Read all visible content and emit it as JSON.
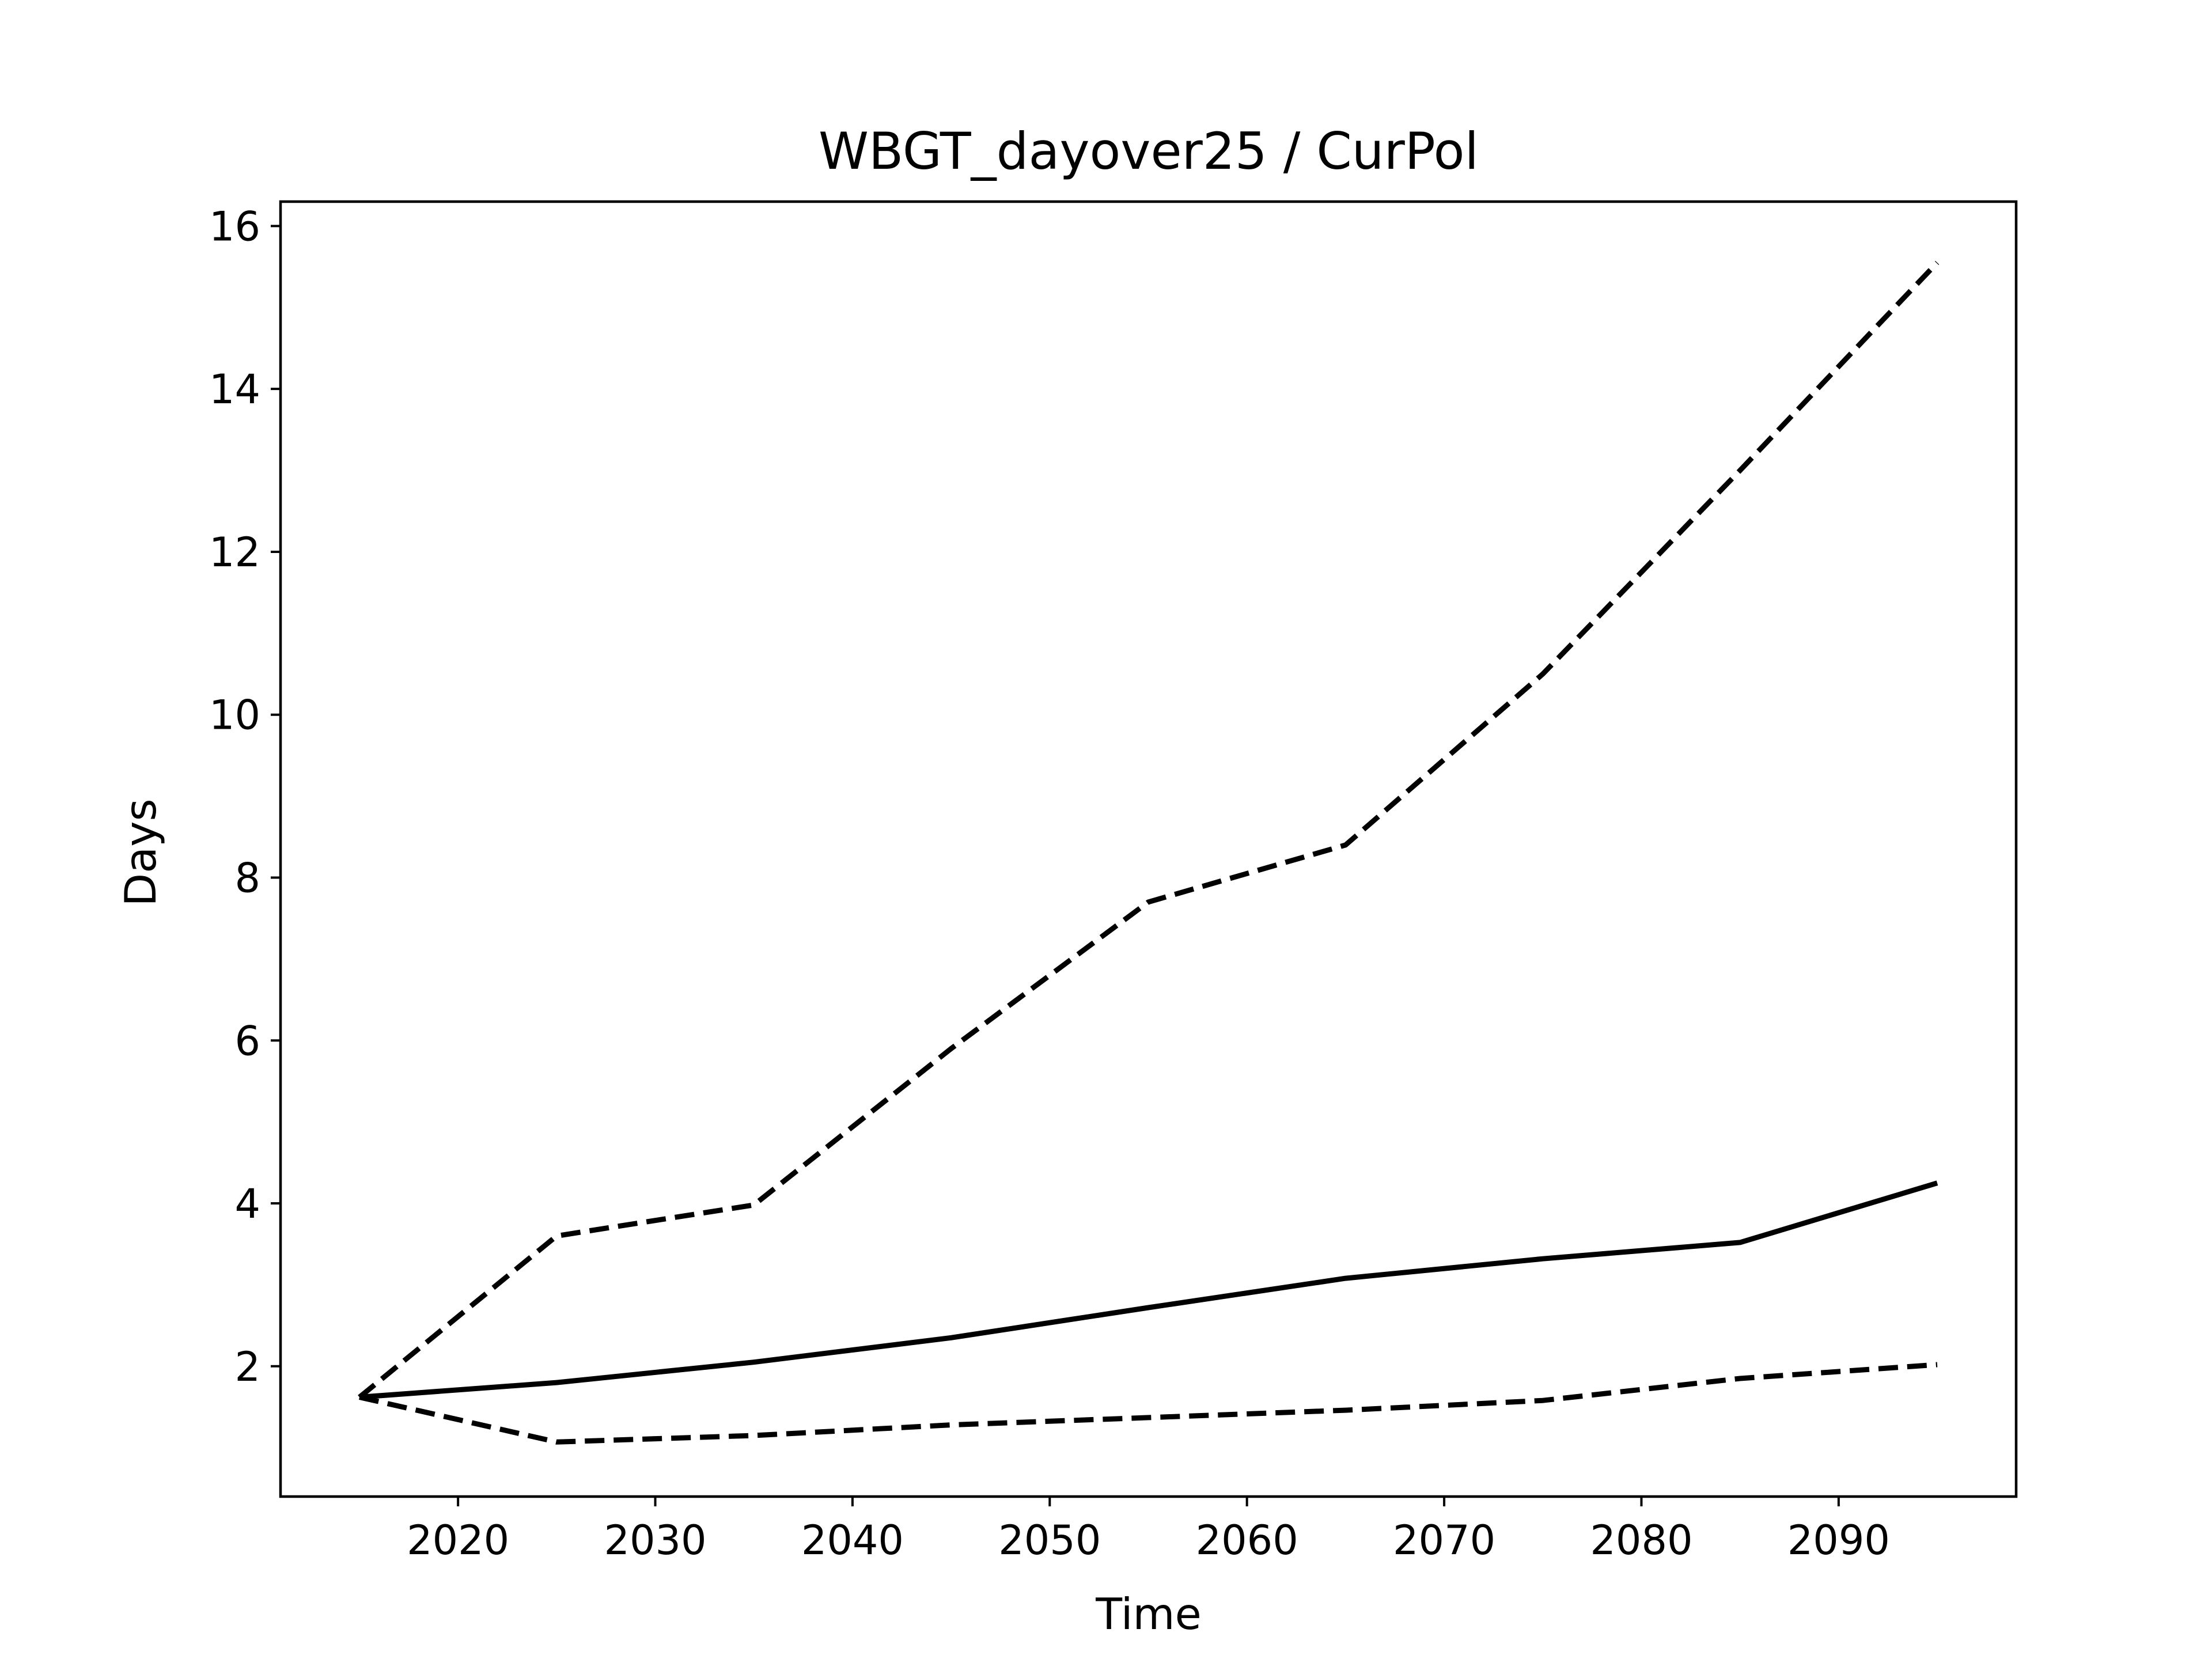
{
  "chart_data": {
    "type": "line",
    "title": "WBGT_dayover25 / CurPol",
    "xlabel": "Time",
    "ylabel": "Days",
    "xlim": [
      2011,
      2099
    ],
    "ylim": [
      0.4,
      16.3
    ],
    "xticks": [
      2020,
      2030,
      2040,
      2050,
      2060,
      2070,
      2080,
      2090
    ],
    "yticks": [
      2,
      4,
      6,
      8,
      10,
      12,
      14,
      16
    ],
    "grid": false,
    "legend": "none",
    "x": [
      2015,
      2025,
      2035,
      2045,
      2055,
      2065,
      2075,
      2085,
      2095
    ],
    "series": [
      {
        "values": [
          1.62,
          3.6,
          3.98,
          5.9,
          7.7,
          8.4,
          10.5,
          13.0,
          15.55
        ],
        "style": "dashed",
        "color": "#000000"
      },
      {
        "values": [
          1.62,
          1.8,
          2.05,
          2.35,
          2.72,
          3.08,
          3.32,
          3.52,
          4.25
        ],
        "style": "solid",
        "color": "#000000"
      },
      {
        "values": [
          1.62,
          1.07,
          1.15,
          1.28,
          1.37,
          1.46,
          1.58,
          1.85,
          2.02
        ],
        "style": "dashed",
        "color": "#000000"
      }
    ]
  }
}
